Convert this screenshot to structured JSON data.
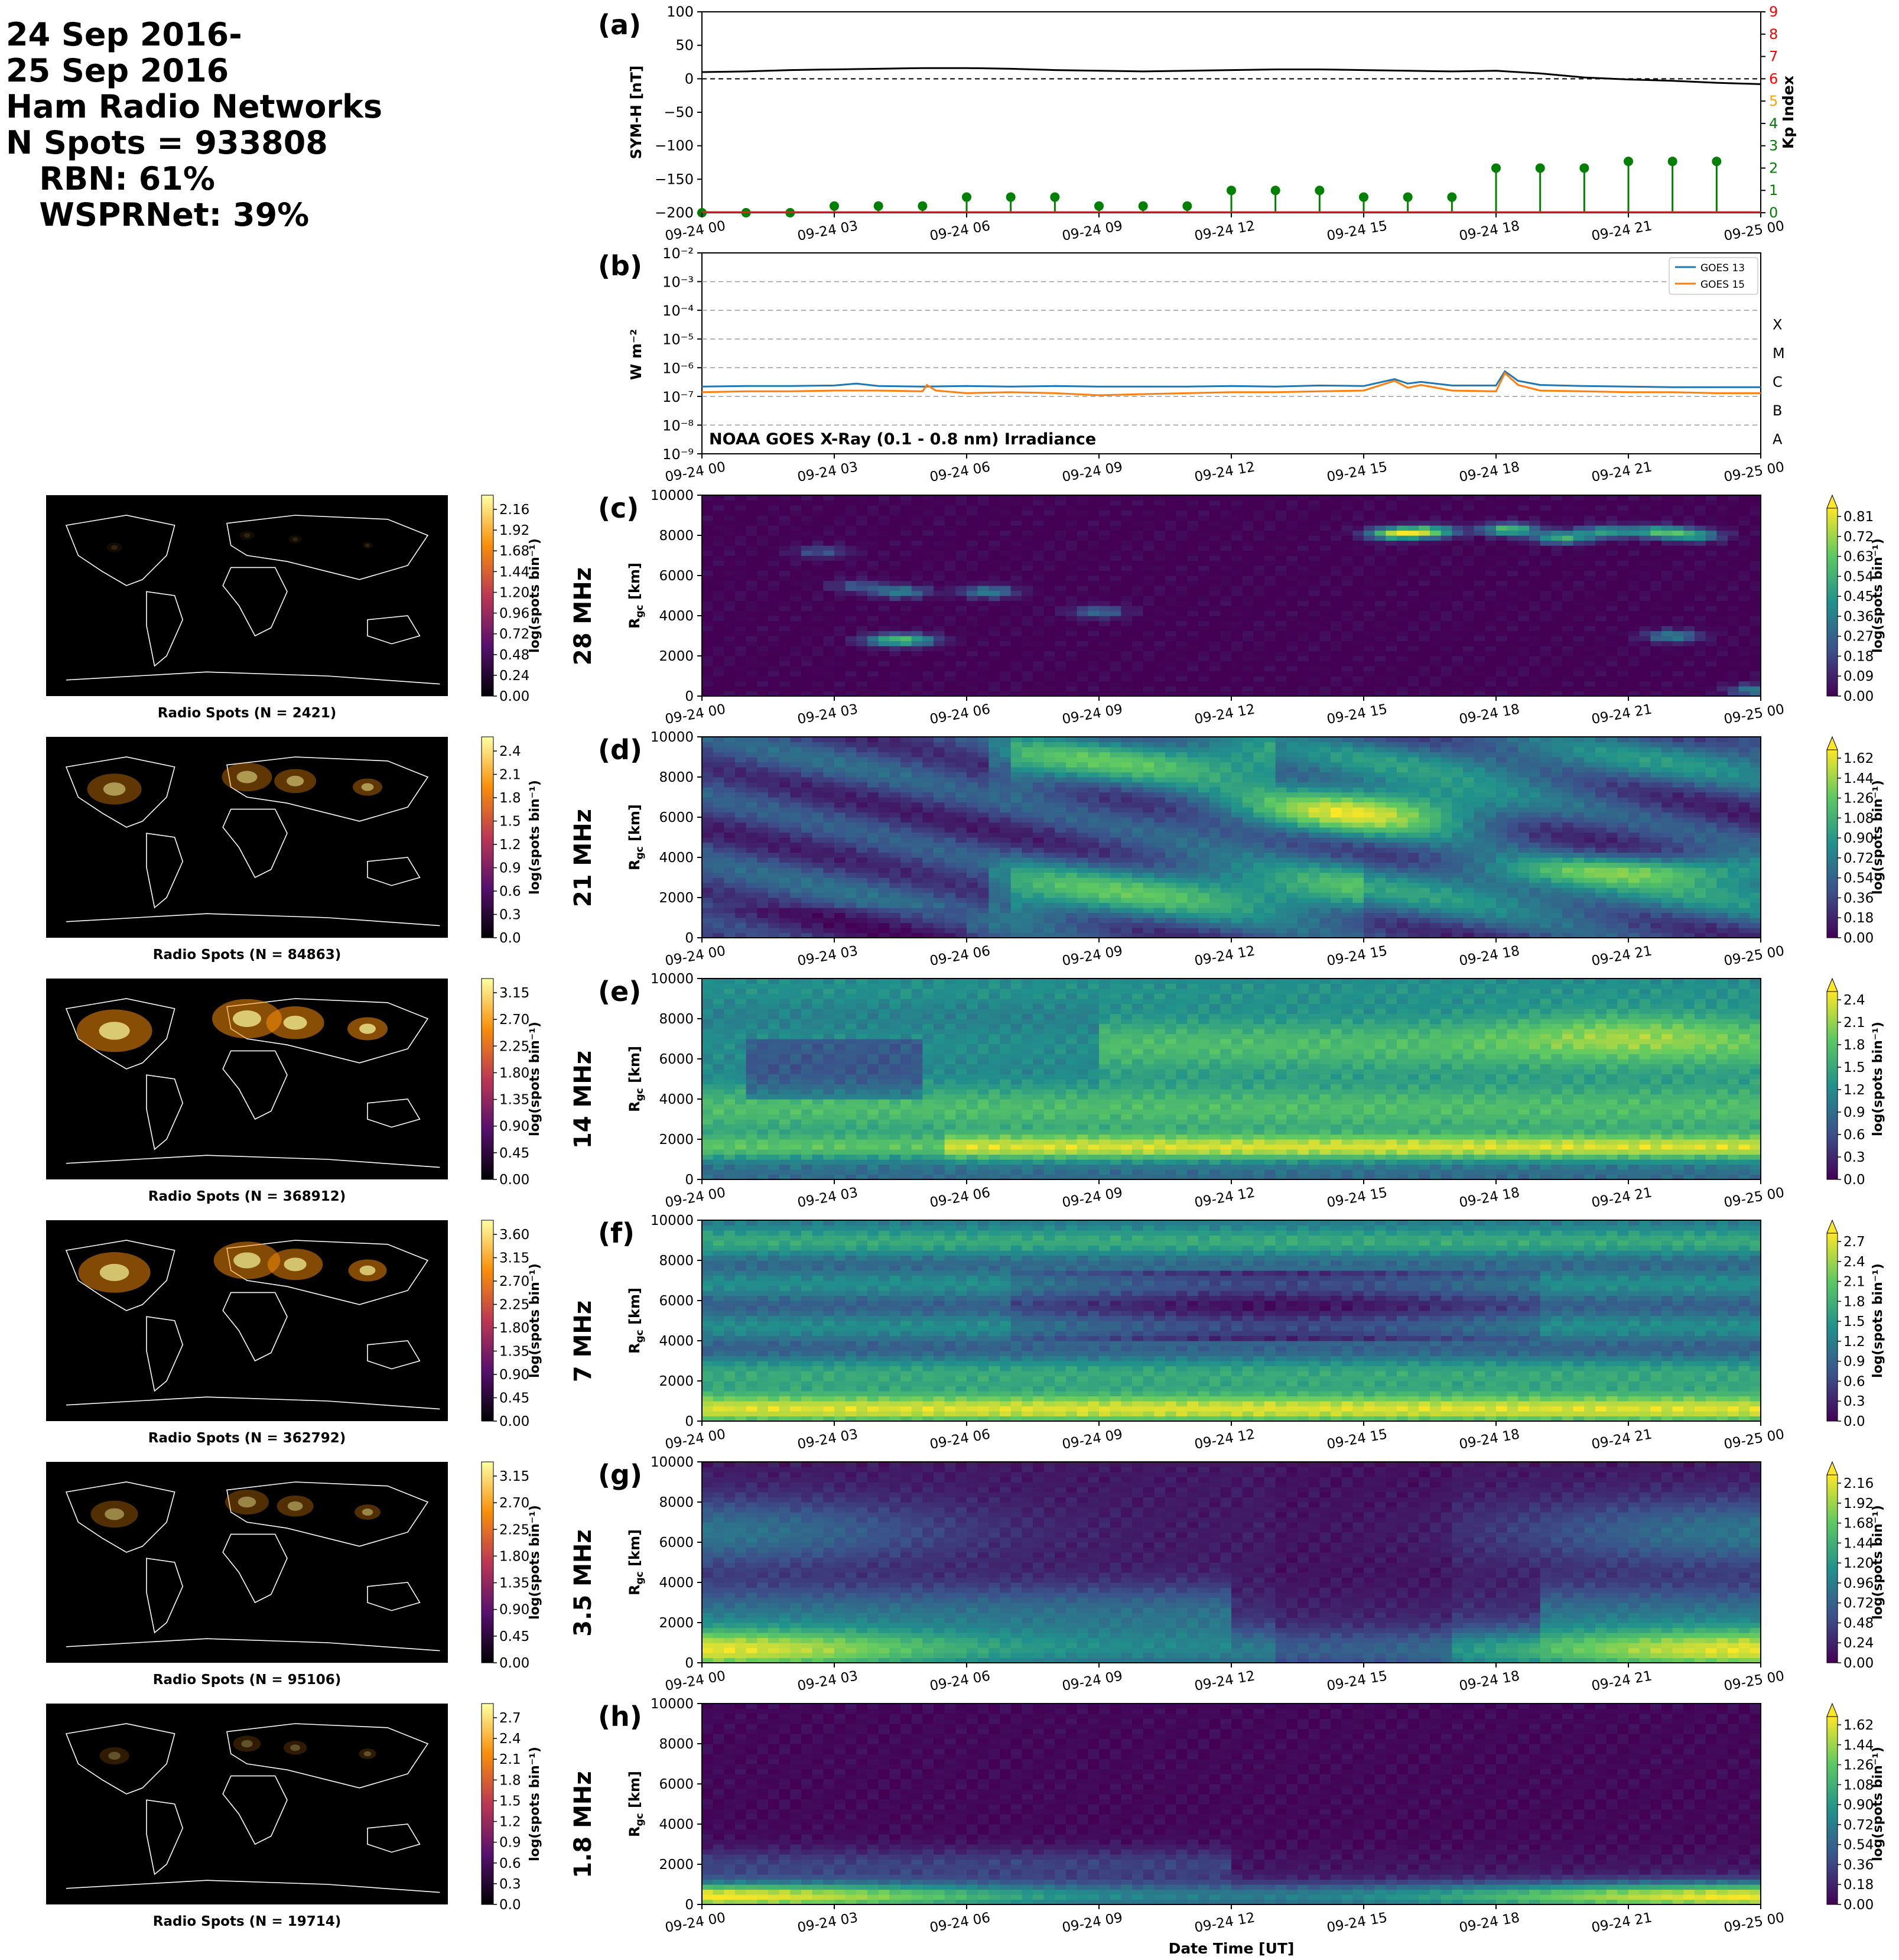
{
  "header": {
    "lines": [
      "24 Sep 2016-",
      "25 Sep 2016",
      "Ham Radio Networks",
      "N Spots = 933808",
      "   RBN: 61%",
      "   WSPRNet: 39%"
    ]
  },
  "time_ticks": [
    "09-24 00",
    "09-24 03",
    "09-24 06",
    "09-24 09",
    "09-24 12",
    "09-24 15",
    "09-24 18",
    "09-24 21",
    "09-25 00"
  ],
  "xlabel": "Date Time [UT]",
  "colors": {
    "symh_line": "#000000",
    "kp_marker": "#008000",
    "goes13": "#1f77b4",
    "goes15": "#ff7f0e",
    "kp_axis_low": "#008000",
    "kp_axis_mid": "#ffa500",
    "kp_axis_high": "#ff0000"
  },
  "chart_data": [
    {
      "panel": "(a)",
      "type": "line",
      "ylabel": "SYM-H [nT]",
      "ylim": [
        -200,
        100
      ],
      "yticks": [
        "100",
        "50",
        "0",
        "−50",
        "−100",
        "−150",
        "−200"
      ],
      "symh": {
        "x_hours": [
          0,
          1,
          2,
          3,
          4,
          5,
          6,
          7,
          8,
          9,
          10,
          11,
          12,
          13,
          14,
          15,
          16,
          17,
          18,
          19,
          20,
          21,
          22,
          23,
          24
        ],
        "values": [
          10,
          11,
          13,
          14,
          15,
          16,
          16,
          15,
          13,
          12,
          11,
          12,
          13,
          14,
          14,
          13,
          12,
          11,
          12,
          8,
          2,
          -1,
          -3,
          -6,
          -8
        ]
      },
      "y2label": "Kp Index",
      "y2lim": [
        0,
        9
      ],
      "y2ticks": [
        "0",
        "1",
        "2",
        "3",
        "4",
        "5",
        "6",
        "7",
        "8",
        "9"
      ],
      "kp": {
        "x_hours": [
          0,
          1,
          2,
          3,
          4,
          5,
          6,
          7,
          8,
          9,
          10,
          11,
          12,
          13,
          14,
          15,
          16,
          17,
          18,
          19,
          20,
          21,
          22,
          23
        ],
        "values": [
          0.0,
          0.0,
          0.0,
          0.3,
          0.3,
          0.3,
          0.7,
          0.7,
          0.7,
          0.3,
          0.3,
          0.3,
          1.0,
          1.0,
          1.0,
          0.7,
          0.7,
          0.7,
          2.0,
          2.0,
          2.0,
          2.3,
          2.3,
          2.3
        ]
      }
    },
    {
      "panel": "(b)",
      "type": "line",
      "yscale": "log",
      "ylabel": "W m⁻²",
      "yticks": [
        "10⁻²",
        "10⁻³",
        "10⁻⁴",
        "10⁻⁵",
        "10⁻⁶",
        "10⁻⁷",
        "10⁻⁸",
        "10⁻⁹"
      ],
      "flare_classes": [
        "X",
        "M",
        "C",
        "B",
        "A"
      ],
      "annotation": "NOAA GOES X-Ray (0.1 - 0.8 nm) Irradiance",
      "series": [
        {
          "name": "GOES 13",
          "x_hours": [
            0,
            1,
            2,
            3,
            3.5,
            4,
            5,
            6,
            7,
            8,
            9,
            10,
            11,
            12,
            13,
            14,
            15,
            15.7,
            16,
            16.3,
            17,
            18,
            18.2,
            18.5,
            19,
            20,
            21,
            22,
            23,
            24
          ],
          "values": [
            2.2e-07,
            2.3e-07,
            2.3e-07,
            2.4e-07,
            2.8e-07,
            2.3e-07,
            2.2e-07,
            2.3e-07,
            2.2e-07,
            2.3e-07,
            2.2e-07,
            2.2e-07,
            2.2e-07,
            2.3e-07,
            2.2e-07,
            2.4e-07,
            2.3e-07,
            4e-07,
            2.8e-07,
            3.2e-07,
            2.4e-07,
            2.4e-07,
            7.5e-07,
            3.5e-07,
            2.5e-07,
            2.3e-07,
            2.2e-07,
            2.1e-07,
            2.1e-07,
            2.1e-07
          ]
        },
        {
          "name": "GOES 15",
          "x_hours": [
            0,
            1,
            2,
            3,
            4,
            5,
            5.1,
            5.3,
            6,
            7,
            8,
            9,
            10,
            11,
            12,
            13,
            14,
            15,
            15.7,
            16,
            16.3,
            17,
            18,
            18.2,
            18.5,
            19,
            20,
            21,
            22,
            23,
            24
          ],
          "values": [
            1.4e-07,
            1.5e-07,
            1.5e-07,
            1.6e-07,
            1.6e-07,
            1.5e-07,
            2.5e-07,
            1.6e-07,
            1.3e-07,
            1.4e-07,
            1.3e-07,
            1.1e-07,
            1.2e-07,
            1.3e-07,
            1.4e-07,
            1.4e-07,
            1.5e-07,
            1.6e-07,
            3.5e-07,
            2e-07,
            2.5e-07,
            1.6e-07,
            1.5e-07,
            6.5e-07,
            2.5e-07,
            1.6e-07,
            1.5e-07,
            1.4e-07,
            1.4e-07,
            1.3e-07,
            1.3e-07
          ]
        }
      ]
    }
  ],
  "range_axis": {
    "ylabel": "R",
    "ylabel_sub": "gc",
    "ylabel_unit": " [km]",
    "ylim": [
      0,
      10000
    ],
    "yticks": [
      "10000",
      "8000",
      "6000",
      "4000",
      "2000",
      "0"
    ]
  },
  "cbar_label": "log(spots bin⁻¹)",
  "bands": [
    {
      "letter": "(c)",
      "band": "28 MHz",
      "map_title": "Radio Spots (N = 2421)",
      "map_cbar": [
        "2.16",
        "1.92",
        "1.68",
        "1.44",
        "1.20",
        "0.96",
        "0.72",
        "0.48",
        "0.24",
        "0.00"
      ],
      "rtp_cbar": [
        "0.81",
        "0.72",
        "0.63",
        "0.54",
        "0.45",
        "0.36",
        "0.27",
        "0.18",
        "0.09",
        "0.00"
      ],
      "heatmap": {
        "profile": "sparse",
        "blobs": [
          [
            15.7,
            8100,
            0.9
          ],
          [
            16.5,
            8200,
            0.8
          ],
          [
            18.3,
            8300,
            0.8
          ],
          [
            19.5,
            7900,
            0.7
          ],
          [
            20.5,
            8200,
            0.6
          ],
          [
            21.7,
            8200,
            0.7
          ],
          [
            22.5,
            8000,
            0.6
          ],
          [
            4.5,
            5200,
            0.5
          ],
          [
            6.5,
            5200,
            0.5
          ],
          [
            4.2,
            2800,
            0.5
          ],
          [
            4.8,
            2800,
            0.5
          ],
          [
            22.0,
            3000,
            0.5
          ],
          [
            9.0,
            4200,
            0.4
          ],
          [
            3.5,
            5500,
            0.3
          ],
          [
            2.7,
            7200,
            0.3
          ],
          [
            23.9,
            300,
            0.5
          ]
        ]
      }
    },
    {
      "letter": "(d)",
      "band": "21 MHz",
      "map_title": "Radio Spots (N = 84863)",
      "map_cbar": [
        "2.4",
        "2.1",
        "1.8",
        "1.5",
        "1.2",
        "0.9",
        "0.6",
        "0.3",
        "0.0"
      ],
      "rtp_cbar": [
        "1.62",
        "1.44",
        "1.26",
        "1.08",
        "0.90",
        "0.72",
        "0.54",
        "0.36",
        "0.18",
        "0.00"
      ],
      "heatmap": {
        "profile": "band21"
      }
    },
    {
      "letter": "(e)",
      "band": "14 MHz",
      "map_title": "Radio Spots (N = 368912)",
      "map_cbar": [
        "3.15",
        "2.70",
        "2.25",
        "1.80",
        "1.35",
        "0.90",
        "0.45",
        "0.00"
      ],
      "rtp_cbar": [
        "2.4",
        "2.1",
        "1.8",
        "1.5",
        "1.2",
        "0.9",
        "0.6",
        "0.3",
        "0.0"
      ],
      "heatmap": {
        "profile": "band14"
      }
    },
    {
      "letter": "(f)",
      "band": "7 MHz",
      "map_title": "Radio Spots (N = 362792)",
      "map_cbar": [
        "3.60",
        "3.15",
        "2.70",
        "2.25",
        "1.80",
        "1.35",
        "0.90",
        "0.45",
        "0.00"
      ],
      "rtp_cbar": [
        "2.7",
        "2.4",
        "2.1",
        "1.8",
        "1.5",
        "1.2",
        "0.9",
        "0.6",
        "0.3",
        "0.0"
      ],
      "heatmap": {
        "profile": "band7"
      }
    },
    {
      "letter": "(g)",
      "band": "3.5 MHz",
      "map_title": "Radio Spots (N = 95106)",
      "map_cbar": [
        "3.15",
        "2.70",
        "2.25",
        "1.80",
        "1.35",
        "0.90",
        "0.45",
        "0.00"
      ],
      "rtp_cbar": [
        "2.16",
        "1.92",
        "1.68",
        "1.44",
        "1.20",
        "0.96",
        "0.72",
        "0.48",
        "0.24",
        "0.00"
      ],
      "heatmap": {
        "profile": "band35"
      }
    },
    {
      "letter": "(h)",
      "band": "1.8 MHz",
      "map_title": "Radio Spots (N = 19714)",
      "map_cbar": [
        "2.7",
        "2.4",
        "2.1",
        "1.8",
        "1.5",
        "1.2",
        "0.9",
        "0.6",
        "0.3",
        "0.0"
      ],
      "rtp_cbar": [
        "1.62",
        "1.44",
        "1.26",
        "1.08",
        "0.90",
        "0.72",
        "0.54",
        "0.36",
        "0.18",
        "0.00"
      ],
      "heatmap": {
        "profile": "band18"
      }
    }
  ]
}
